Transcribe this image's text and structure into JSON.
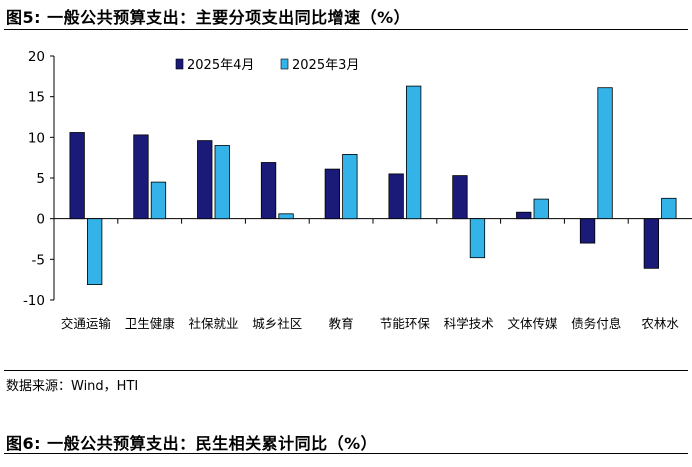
{
  "figure_title": "图5:  一般公共预算支出：主要分项支出同比增速（%）",
  "source_note": "数据来源：Wind，HTI",
  "next_figure_title": "图6:  一般公共预算支出：民生相关累计同比（%）",
  "colors": {
    "series_1": "#1a1a78",
    "series_2": "#33b3e8"
  },
  "chart_data": {
    "type": "bar",
    "categories": [
      "交通运输",
      "卫生健康",
      "社保就业",
      "城乡社区",
      "教育",
      "节能环保",
      "科学技术",
      "文体传媒",
      "债务付息",
      "农林水"
    ],
    "series": [
      {
        "name": "2025年4月",
        "values": [
          10.6,
          10.3,
          9.6,
          6.9,
          6.1,
          5.5,
          5.3,
          0.8,
          -3.0,
          -6.1
        ]
      },
      {
        "name": "2025年3月",
        "values": [
          -8.1,
          4.5,
          9.0,
          0.6,
          7.9,
          16.3,
          -4.8,
          2.4,
          16.1,
          2.5
        ]
      }
    ],
    "ylim": [
      -10,
      20
    ],
    "yticks": [
      "-10",
      "-5",
      "0",
      "5",
      "10",
      "15",
      "20"
    ],
    "title": "",
    "xlabel": "",
    "ylabel": "",
    "legend_position": "top"
  }
}
